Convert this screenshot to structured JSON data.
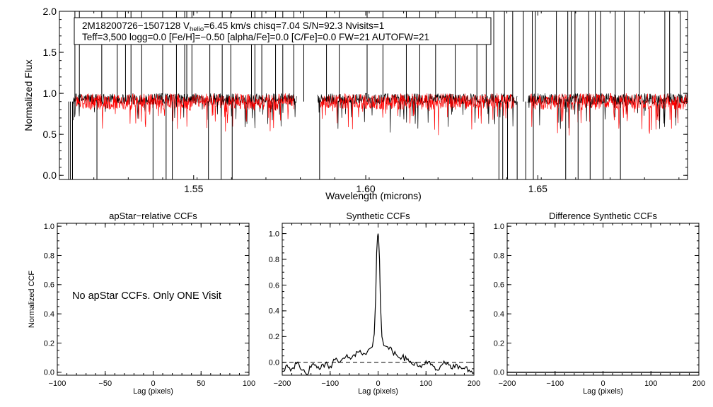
{
  "chart_data": [
    {
      "type": "line",
      "id": "spectrum",
      "title": "",
      "xlabel": "Wavelength (microns)",
      "ylabel": "Normalized Flux",
      "xlim": [
        1.511,
        1.6935
      ],
      "ylim": [
        -0.05,
        2.0
      ],
      "xticks": [
        "1.55",
        "1.60",
        "1.65"
      ],
      "xtick_values": [
        1.55,
        1.6,
        1.65
      ],
      "yticks": [
        "0.0",
        "0.5",
        "1.0",
        "1.5",
        "2.0"
      ],
      "ytick_values": [
        0.0,
        0.5,
        1.0,
        1.5,
        2.0
      ],
      "info_box": {
        "star": "2M18200726−1507128",
        "vhelio_prefix": "V",
        "vhelio_sub": "helio",
        "vhelio_value": "=6.45 km/s",
        "chisq": "chisq=7.04",
        "snr": "S/N=92.3",
        "nvisits": "Nvisits=1",
        "params": "Teff=3,500 logg=0.0 [Fe/H]=−0.50 [alpha/Fe]=0.0 [C/Fe]=0.0 FW=21 AUTOFW=21"
      },
      "detector_ranges": [
        [
          1.515,
          1.58
        ],
        [
          1.586,
          1.644
        ],
        [
          1.647,
          1.696
        ]
      ],
      "series": [
        {
          "name": "observed",
          "color": "#000000",
          "continuum": 0.93,
          "scatter": 0.07
        },
        {
          "name": "model",
          "color": "#ff0000",
          "continuum": 0.9,
          "scatter": 0.1
        }
      ],
      "spikes_high": [
        1.5155,
        1.5168,
        1.5233,
        1.5278,
        1.5302,
        1.5318,
        1.5349,
        1.541,
        1.545,
        1.5474,
        1.548,
        1.5495,
        1.5547,
        1.5583,
        1.5608,
        1.5668,
        1.5678,
        1.5698,
        1.5738,
        1.5759,
        1.5791,
        1.582,
        1.5886,
        1.5923,
        1.6004,
        1.605,
        1.6118,
        1.6157,
        1.6203,
        1.626,
        1.6323,
        1.635,
        1.6372,
        1.6403,
        1.6427,
        1.6458,
        1.6484,
        1.6493,
        1.6554,
        1.6587,
        1.6597,
        1.6608,
        1.6648,
        1.6667,
        1.6682,
        1.6725,
        1.6751,
        1.6795,
        1.6869,
        1.6883,
        1.6914
      ],
      "dips_low": [
        1.5137,
        1.5142,
        1.5148,
        1.5219,
        1.5382,
        1.542,
        1.5438,
        1.5543,
        1.558,
        1.5612,
        1.5866,
        1.6387,
        1.6398,
        1.6412,
        1.644,
        1.6465,
        1.6487,
        1.6581,
        1.6617,
        1.6652,
        1.669,
        1.674,
        1.6935
      ]
    },
    {
      "type": "line",
      "id": "apstar_ccf",
      "title": "apStar−relative CCFs",
      "xlabel": "Lag (pixels)",
      "ylabel": "Normalized CCF",
      "xlim": [
        -100,
        100
      ],
      "ylim": [
        -0.02,
        1.02
      ],
      "xticks": [
        "−100",
        "−50",
        "0",
        "50",
        "100"
      ],
      "xtick_values": [
        -100,
        -50,
        0,
        50,
        100
      ],
      "yticks": [
        "0.0",
        "0.2",
        "0.4",
        "0.6",
        "0.8",
        "1.0"
      ],
      "ytick_values": [
        0.0,
        0.2,
        0.4,
        0.6,
        0.8,
        1.0
      ],
      "annotation": "No apStar CCFs.  Only ONE Visit",
      "series": []
    },
    {
      "type": "line",
      "id": "synthetic_ccf",
      "title": "Synthetic CCFs",
      "xlabel": "Lag (pixels)",
      "ylabel": "",
      "xlim": [
        -200,
        200
      ],
      "ylim": [
        -0.1,
        1.08
      ],
      "xticks": [
        "−200",
        "−100",
        "0",
        "100",
        "200"
      ],
      "xtick_values": [
        -200,
        -100,
        0,
        100,
        200
      ],
      "yticks": [
        "0.0",
        "0.2",
        "0.4",
        "0.6",
        "0.8",
        "1.0"
      ],
      "ytick_values": [
        0.0,
        0.2,
        0.4,
        0.6,
        0.8,
        1.0
      ],
      "zero_line": 0.0,
      "series": [
        {
          "name": "ccf",
          "color": "#000000",
          "x": [
            -200,
            -190,
            -180,
            -170,
            -160,
            -150,
            -140,
            -130,
            -120,
            -110,
            -100,
            -90,
            -80,
            -70,
            -60,
            -50,
            -40,
            -30,
            -20,
            -12,
            -8,
            -5,
            -3,
            -1,
            0,
            1,
            3,
            5,
            8,
            12,
            20,
            30,
            40,
            50,
            60,
            70,
            80,
            90,
            100,
            110,
            120,
            130,
            140,
            150,
            160,
            170,
            180,
            190,
            200
          ],
          "y": [
            -0.07,
            -0.02,
            -0.05,
            -0.01,
            -0.06,
            -0.09,
            -0.04,
            -0.02,
            -0.05,
            -0.01,
            -0.03,
            0.02,
            0.0,
            0.03,
            0.04,
            0.06,
            0.08,
            0.07,
            0.1,
            0.12,
            0.22,
            0.5,
            0.85,
            0.98,
            1.0,
            0.97,
            0.8,
            0.45,
            0.2,
            0.13,
            0.12,
            0.08,
            0.05,
            0.04,
            0.02,
            -0.01,
            0.0,
            -0.04,
            0.01,
            -0.02,
            -0.06,
            -0.03,
            -0.01,
            -0.02,
            -0.04,
            -0.03,
            -0.05,
            -0.06,
            -0.08
          ]
        }
      ]
    },
    {
      "type": "line",
      "id": "difference_ccf",
      "title": "Difference Synthetic CCFs",
      "xlabel": "Lag (pixels)",
      "ylabel": "",
      "xlim": [
        -200,
        200
      ],
      "ylim": [
        -0.02,
        1.02
      ],
      "xticks": [
        "−200",
        "−100",
        "0",
        "100",
        "200"
      ],
      "xtick_values": [
        -200,
        -100,
        0,
        100,
        200
      ],
      "yticks": [
        "0.0",
        "0.2",
        "0.4",
        "0.6",
        "0.8",
        "1.0"
      ],
      "ytick_values": [
        0.0,
        0.2,
        0.4,
        0.6,
        0.8,
        1.0
      ],
      "series": [
        {
          "name": "difference",
          "color": "#000000",
          "x": [
            -200,
            200
          ],
          "y": [
            0.0,
            0.0
          ]
        }
      ]
    }
  ]
}
